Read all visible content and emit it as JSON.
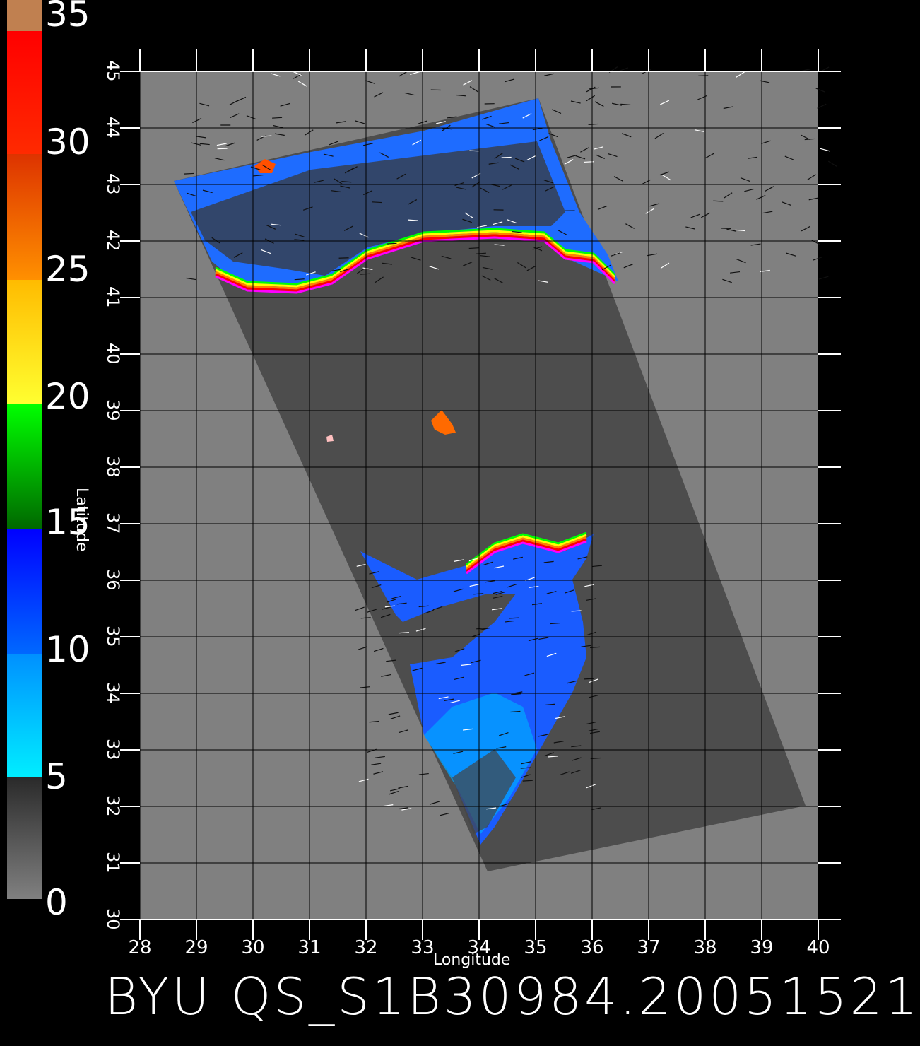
{
  "colorbar": {
    "labels": [
      "35",
      "30",
      "25",
      "20",
      "15",
      "10",
      "5",
      "0"
    ],
    "bands": [
      {
        "from": 0,
        "to": 5,
        "color": [
          "#808080",
          "#2a2a2a"
        ]
      },
      {
        "from": 5,
        "to": 10,
        "color": [
          "#00e5ff",
          "#0080ff"
        ]
      },
      {
        "from": 10,
        "to": 15,
        "color": [
          "#0070ff",
          "#0000ff"
        ]
      },
      {
        "from": 15,
        "to": 20,
        "color": [
          "#007000",
          "#00ff00"
        ]
      },
      {
        "from": 20,
        "to": 25,
        "color": [
          "#ffff30",
          "#ffc000"
        ]
      },
      {
        "from": 25,
        "to": 30,
        "color": [
          "#ff8000",
          "#e03000"
        ]
      },
      {
        "from": 30,
        "to": 35,
        "color": [
          "#ff3000",
          "#ff0000"
        ]
      },
      {
        "from": 35,
        "to": 36,
        "color": [
          "#c08050",
          "#c08050"
        ]
      }
    ]
  },
  "map": {
    "lon_ticks": [
      "28",
      "29",
      "30",
      "31",
      "32",
      "33",
      "34",
      "35",
      "36",
      "37",
      "38",
      "39",
      "40"
    ],
    "lat_ticks": [
      "30",
      "31",
      "32",
      "33",
      "34",
      "35",
      "36",
      "37",
      "38",
      "39",
      "40",
      "41",
      "42",
      "43",
      "44",
      "45"
    ],
    "lon_range": [
      28,
      40
    ],
    "lat_range": [
      30,
      45
    ],
    "xlabel": "Longitude",
    "ylabel": "Latitude",
    "background_color": "#808080",
    "swath_color": "#4d4d4d"
  },
  "footer": {
    "title": "BYU QS_S1B30984.20051521"
  }
}
